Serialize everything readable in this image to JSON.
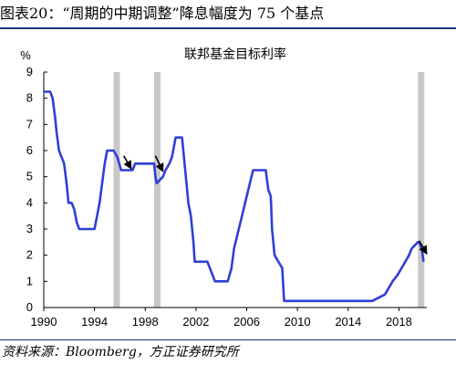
{
  "figure": {
    "label": "图表20：",
    "title": "“周期的中期调整”降息幅度为 75 个基点"
  },
  "source": "资料来源：Bloomberg，方正证券研究所",
  "chart_data": {
    "type": "line",
    "title": "联邦基金目标利率",
    "ylabel": "%",
    "xlabel": "",
    "xlim": [
      1990,
      2020.2
    ],
    "ylim": [
      0,
      9
    ],
    "x_ticks": [
      "1990",
      "1994",
      "1998",
      "2002",
      "2006",
      "2010",
      "2014",
      "2018"
    ],
    "x_tick_values": [
      1990,
      1994,
      1998,
      2002,
      2006,
      2010,
      2014,
      2018
    ],
    "y_ticks": [
      "0",
      "1",
      "2",
      "3",
      "4",
      "5",
      "6",
      "7",
      "8",
      "9"
    ],
    "y_tick_values": [
      0,
      1,
      2,
      3,
      4,
      5,
      6,
      7,
      8,
      9
    ],
    "grid": false,
    "line_color": "#2f3fd6",
    "shade_color": "#c8c8c8",
    "arrow_color": "#000000",
    "shaded_periods": [
      [
        1995.5,
        1996.0
      ],
      [
        1998.7,
        1999.2
      ],
      [
        2019.5,
        2020.0
      ]
    ],
    "annotations": [
      {
        "type": "arrow",
        "from": [
          1996.3,
          5.8
        ],
        "to": [
          1996.9,
          5.3
        ]
      },
      {
        "type": "arrow",
        "from": [
          1998.8,
          5.8
        ],
        "to": [
          1999.4,
          5.2
        ]
      },
      {
        "type": "arrow",
        "from": [
          2019.6,
          2.55
        ],
        "to": [
          2020.2,
          2.05
        ]
      }
    ],
    "series": [
      {
        "x": [
          1990.0,
          1990.5,
          1990.7,
          1990.9,
          1991.0,
          1991.2,
          1991.4,
          1991.6,
          1991.8,
          1991.95,
          1992.2,
          1992.4,
          1992.6,
          1992.8,
          1993.0,
          1993.5,
          1994.0,
          1994.2,
          1994.4,
          1994.6,
          1994.8,
          1995.0,
          1995.5,
          1995.8,
          1996.1,
          1997.0,
          1997.2,
          1998.0,
          1998.7,
          1998.8,
          1998.9,
          1999.4,
          1999.6,
          1999.9,
          2000.1,
          2000.4,
          2000.9,
          2001.0,
          2001.2,
          2001.4,
          2001.6,
          2001.8,
          2001.9,
          2002.9,
          2003.5,
          2004.5,
          2004.8,
          2005.0,
          2005.5,
          2006.0,
          2006.5,
          2007.5,
          2007.7,
          2007.9,
          2008.0,
          2008.2,
          2008.8,
          2008.95,
          2015.9,
          2016.9,
          2017.2,
          2017.5,
          2017.9,
          2018.2,
          2018.5,
          2018.8,
          2019.0,
          2019.5,
          2019.6,
          2019.8,
          2019.95
        ],
        "values": [
          8.25,
          8.25,
          8.0,
          7.25,
          6.75,
          6.0,
          5.75,
          5.5,
          4.75,
          4.0,
          4.0,
          3.75,
          3.25,
          3.0,
          3.0,
          3.0,
          3.0,
          3.5,
          4.0,
          4.75,
          5.5,
          6.0,
          6.0,
          5.75,
          5.25,
          5.25,
          5.5,
          5.5,
          5.5,
          5.0,
          4.75,
          5.0,
          5.25,
          5.5,
          5.75,
          6.5,
          6.5,
          6.0,
          5.0,
          4.0,
          3.5,
          2.5,
          1.75,
          1.75,
          1.0,
          1.0,
          1.5,
          2.25,
          3.25,
          4.25,
          5.25,
          5.25,
          4.5,
          4.25,
          3.0,
          2.0,
          1.5,
          0.25,
          0.25,
          0.5,
          0.75,
          1.0,
          1.25,
          1.5,
          1.75,
          2.0,
          2.25,
          2.5,
          2.5,
          2.25,
          1.75
        ]
      }
    ]
  }
}
